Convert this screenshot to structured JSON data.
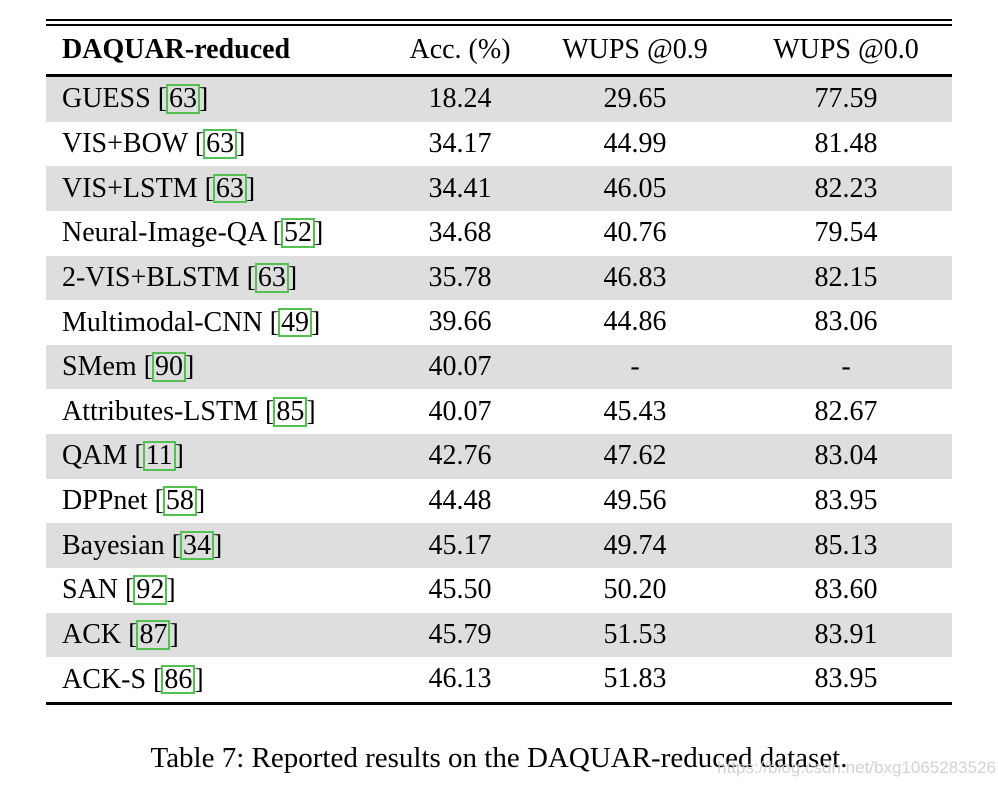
{
  "table": {
    "columns": [
      "DAQUAR-reduced",
      "Acc. (%)",
      "WUPS @0.9",
      "WUPS @0.0"
    ],
    "rows": [
      {
        "method": "GUESS",
        "cite": "63",
        "acc": "18.24",
        "wups09": "29.65",
        "wups00": "77.59"
      },
      {
        "method": "VIS+BOW",
        "cite": "63",
        "acc": "34.17",
        "wups09": "44.99",
        "wups00": "81.48"
      },
      {
        "method": "VIS+LSTM",
        "cite": "63",
        "acc": "34.41",
        "wups09": "46.05",
        "wups00": "82.23"
      },
      {
        "method": "Neural-Image-QA",
        "cite": "52",
        "acc": "34.68",
        "wups09": "40.76",
        "wups00": "79.54"
      },
      {
        "method": "2-VIS+BLSTM",
        "cite": "63",
        "acc": "35.78",
        "wups09": "46.83",
        "wups00": "82.15"
      },
      {
        "method": "Multimodal-CNN",
        "cite": "49",
        "acc": "39.66",
        "wups09": "44.86",
        "wups00": "83.06"
      },
      {
        "method": "SMem",
        "cite": "90",
        "acc": "40.07",
        "wups09": "-",
        "wups00": "-"
      },
      {
        "method": "Attributes-LSTM",
        "cite": "85",
        "acc": "40.07",
        "wups09": "45.43",
        "wups00": "82.67"
      },
      {
        "method": "QAM",
        "cite": "11",
        "acc": "42.76",
        "wups09": "47.62",
        "wups00": "83.04"
      },
      {
        "method": "DPPnet",
        "cite": "58",
        "acc": "44.48",
        "wups09": "49.56",
        "wups00": "83.95"
      },
      {
        "method": "Bayesian",
        "cite": "34",
        "acc": "45.17",
        "wups09": "49.74",
        "wups00": "85.13"
      },
      {
        "method": "SAN",
        "cite": "92",
        "acc": "45.50",
        "wups09": "50.20",
        "wups00": "83.60"
      },
      {
        "method": "ACK",
        "cite": "87",
        "acc": "45.79",
        "wups09": "51.53",
        "wups00": "83.91"
      },
      {
        "method": "ACK-S",
        "cite": "86",
        "acc": "46.13",
        "wups09": "51.83",
        "wups00": "83.95"
      }
    ]
  },
  "caption": "Table 7: Reported results on the DAQUAR-reduced dataset.",
  "watermark": "https://blog.csdn.net/bxg1065283526",
  "colors": {
    "row_shade": "#dedede",
    "rule": "#000000",
    "citation_box_border": "#52c152",
    "watermark_text": "#cbcbcb"
  }
}
